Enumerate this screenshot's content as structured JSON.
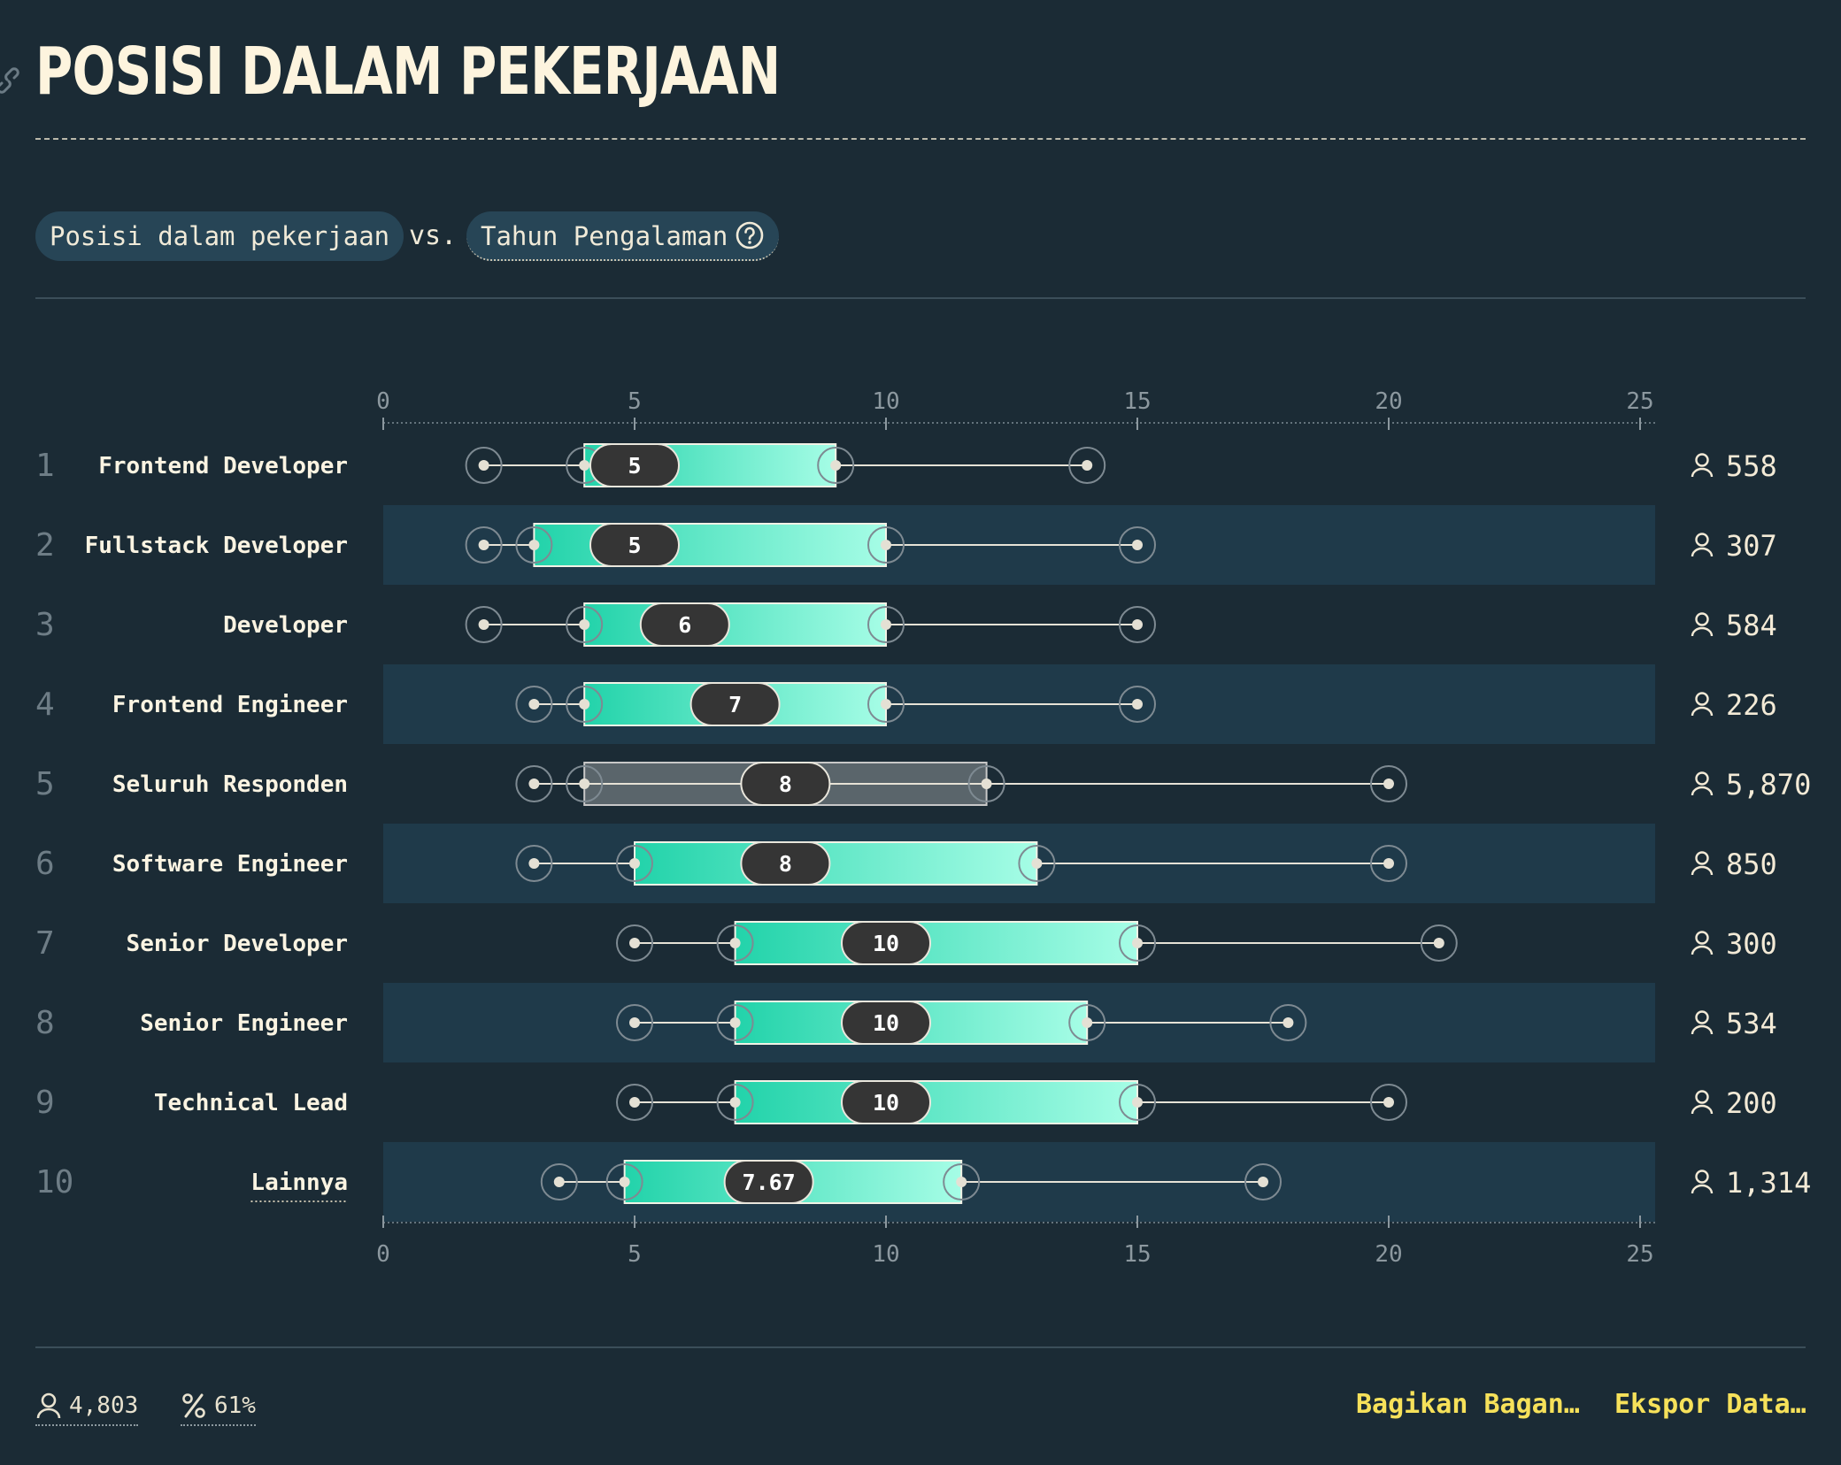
{
  "header": {
    "title": "POSISI DALAM PEKERJAAN"
  },
  "filters": {
    "chip_a": "Posisi dalam pekerjaan",
    "vs": "vs.",
    "chip_b": "Tahun Pengalaman"
  },
  "chart_data": {
    "type": "box",
    "x_ticks": [
      0,
      5,
      10,
      15,
      20,
      25
    ],
    "xlim": [
      0,
      25.3
    ],
    "grid": false,
    "rows": [
      {
        "rank": "1",
        "label": "Frontend Developer",
        "p10": 2,
        "q1": 4,
        "median": 5,
        "median_label": "5",
        "q3": 9,
        "p90": 14,
        "count": "558",
        "highlight": false,
        "underline": false
      },
      {
        "rank": "2",
        "label": "Fullstack Developer",
        "p10": 2,
        "q1": 3,
        "median": 5,
        "median_label": "5",
        "q3": 10,
        "p90": 15,
        "count": "307",
        "highlight": false,
        "underline": false
      },
      {
        "rank": "3",
        "label": "Developer",
        "p10": 2,
        "q1": 4,
        "median": 6,
        "median_label": "6",
        "q3": 10,
        "p90": 15,
        "count": "584",
        "highlight": false,
        "underline": false
      },
      {
        "rank": "4",
        "label": "Frontend Engineer",
        "p10": 3,
        "q1": 4,
        "median": 7,
        "median_label": "7",
        "q3": 10,
        "p90": 15,
        "count": "226",
        "highlight": false,
        "underline": false
      },
      {
        "rank": "5",
        "label": "Seluruh Responden",
        "p10": 3,
        "q1": 4,
        "median": 8,
        "median_label": "8",
        "q3": 12,
        "p90": 20,
        "count": "5,870",
        "highlight": true,
        "underline": false
      },
      {
        "rank": "6",
        "label": "Software Engineer",
        "p10": 3,
        "q1": 5,
        "median": 8,
        "median_label": "8",
        "q3": 13,
        "p90": 20,
        "count": "850",
        "highlight": false,
        "underline": false
      },
      {
        "rank": "7",
        "label": "Senior Developer",
        "p10": 5,
        "q1": 7,
        "median": 10,
        "median_label": "10",
        "q3": 15,
        "p90": 21,
        "count": "300",
        "highlight": false,
        "underline": false
      },
      {
        "rank": "8",
        "label": "Senior Engineer",
        "p10": 5,
        "q1": 7,
        "median": 10,
        "median_label": "10",
        "q3": 14,
        "p90": 18,
        "count": "534",
        "highlight": false,
        "underline": false
      },
      {
        "rank": "9",
        "label": "Technical Lead",
        "p10": 5,
        "q1": 7,
        "median": 10,
        "median_label": "10",
        "q3": 15,
        "p90": 20,
        "count": "200",
        "highlight": false,
        "underline": false
      },
      {
        "rank": "10",
        "label": "Lainnya",
        "p10": 3.5,
        "q1": 4.8,
        "median": 7.67,
        "median_label": "7.67",
        "q3": 11.5,
        "p90": 17.5,
        "count": "1,314",
        "highlight": false,
        "underline": true
      }
    ]
  },
  "footer": {
    "respondents": "4,803",
    "percent": "61%",
    "share_label": "Bagikan Bagan…",
    "export_label": "Ekspor Data…"
  },
  "colors": {
    "background": "#1b2b35",
    "band": "#1f3a4a",
    "box_start": "#22d3aa",
    "box_end": "#a6fde6",
    "highlight_box": "#5a656b",
    "median_pill": "#353535",
    "link_yellow": "#f6e15a",
    "text": "#f3ead6"
  },
  "icons": [
    "link-icon",
    "help-circle-icon",
    "person-icon",
    "percent-icon"
  ]
}
